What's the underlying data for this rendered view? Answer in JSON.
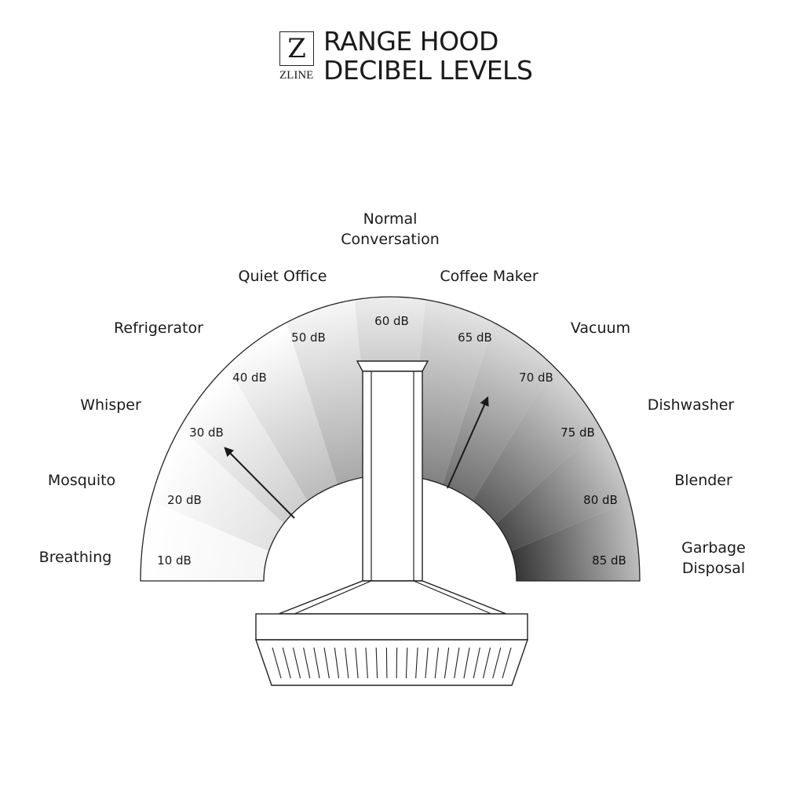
{
  "logo": {
    "letter": "Z",
    "wordmark": "ZLINE"
  },
  "title": {
    "line1": "RANGE HOOD",
    "line2": "DECIBEL LEVELS"
  },
  "levels": [
    {
      "source": "Breathing",
      "db": "10 dB"
    },
    {
      "source": "Mosquito",
      "db": "20 dB"
    },
    {
      "source": "Whisper",
      "db": "30 dB"
    },
    {
      "source": "Refrigerator",
      "db": "40 dB"
    },
    {
      "source": "Quiet Office",
      "db": "50 dB"
    },
    {
      "source": "Normal Conversation",
      "db": "60 dB"
    },
    {
      "source": "Coffee Maker",
      "db": "65 dB"
    },
    {
      "source": "Vacuum",
      "db": "70 dB"
    },
    {
      "source": "Dishwasher",
      "db": "75 dB"
    },
    {
      "source": "Blender",
      "db": "80 dB"
    },
    {
      "source": "Garbage Disposal",
      "db": "85 dB"
    }
  ],
  "range_indicator": {
    "from_db": "30 dB",
    "to_db": "70 dB"
  },
  "colors": {
    "light": "#ffffff",
    "dark": "#2a2a2a",
    "ink": "#1a1a1a"
  }
}
